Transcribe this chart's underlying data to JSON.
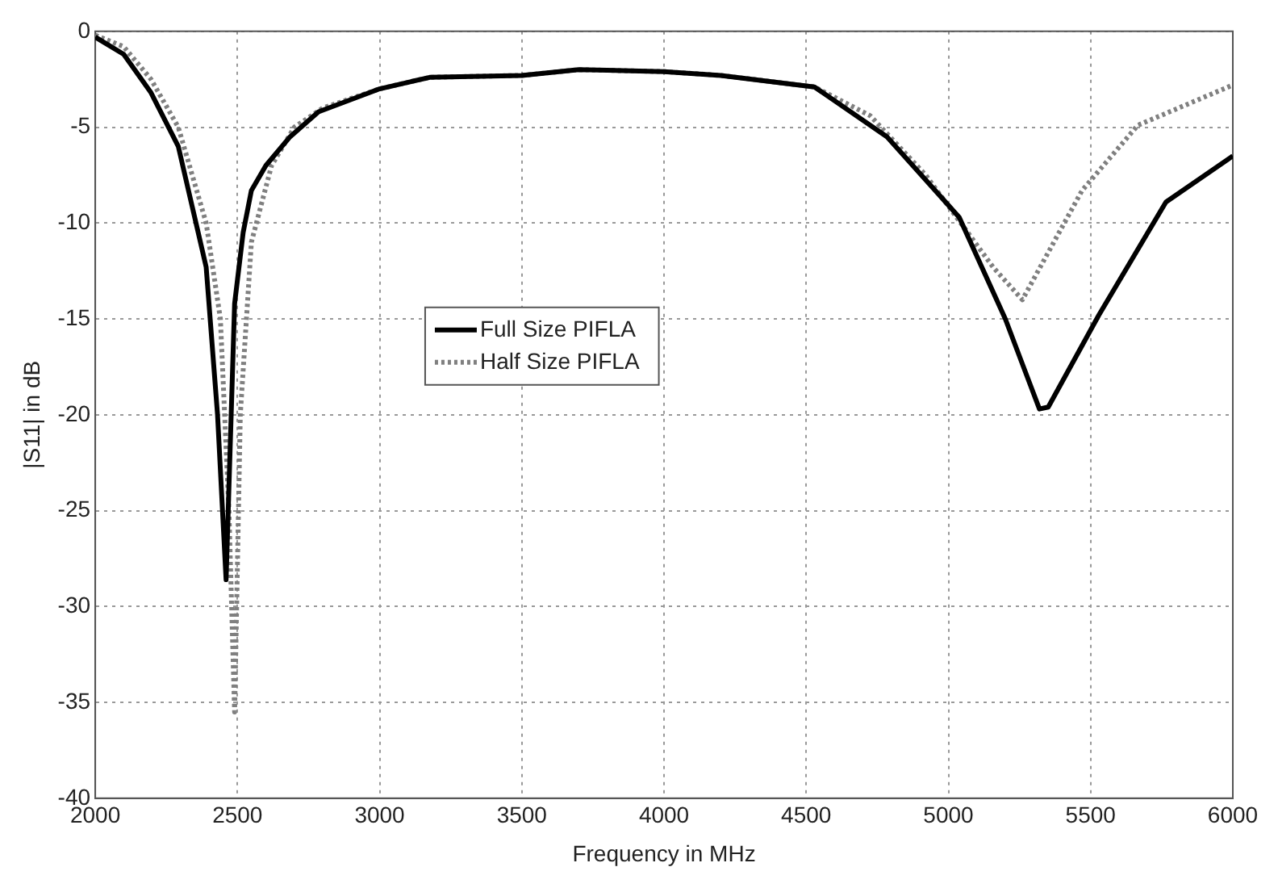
{
  "chart_data": {
    "type": "line",
    "xlabel": "Frequency in MHz",
    "ylabel": "|S11| in dB",
    "xlim": [
      2000,
      6000
    ],
    "xticks": [
      2000,
      2500,
      3000,
      3500,
      4000,
      4500,
      5000,
      5500,
      6000
    ],
    "ylim": [
      -40,
      0
    ],
    "yticks": [
      -40,
      -35,
      -30,
      -25,
      -20,
      -15,
      -10,
      -5,
      0
    ],
    "grid": true,
    "legend": "center",
    "marker": "none",
    "series": [
      {
        "name": "Full Size PIFLA",
        "color": "#000000",
        "line_style": "solid",
        "x": [
          2000,
          2100,
          2196,
          2292,
          2390,
          2430,
          2460,
          2490,
          2520,
          2549,
          2600,
          2685,
          2785,
          3000,
          3176,
          3500,
          3700,
          4000,
          4200,
          4529,
          4784,
          5038,
          5200,
          5320,
          5351,
          5529,
          5765,
          6000
        ],
        "values": [
          -0.3,
          -1.2,
          -3.2,
          -6,
          -12.3,
          -20,
          -28.6,
          -14.2,
          -10.5,
          -8.3,
          -7,
          -5.5,
          -4.2,
          -3,
          -2.4,
          -2.3,
          -2,
          -2.1,
          -2.3,
          -2.9,
          -5.5,
          -9.7,
          -15,
          -19.7,
          -19.6,
          -14.8,
          -8.9,
          -6.5
        ]
      },
      {
        "name": "Half Size PIFLA",
        "color": "#808080",
        "line_style": "dotted",
        "x": [
          2000,
          2100,
          2196,
          2292,
          2390,
          2440,
          2470,
          2490,
          2510,
          2549,
          2620,
          2700,
          2800,
          3000,
          3176,
          3500,
          3700,
          4000,
          4200,
          4529,
          4725,
          4920,
          5157,
          5260,
          5470,
          5666,
          6000
        ],
        "values": [
          -0.2,
          -0.8,
          -2.5,
          -5,
          -10,
          -15,
          -25,
          -35.5,
          -20,
          -11,
          -7,
          -5,
          -4,
          -3,
          -2.4,
          -2.3,
          -2,
          -2.1,
          -2.3,
          -2.9,
          -4.4,
          -7.5,
          -12.3,
          -14,
          -8.3,
          -4.9,
          -2.8
        ]
      }
    ]
  }
}
